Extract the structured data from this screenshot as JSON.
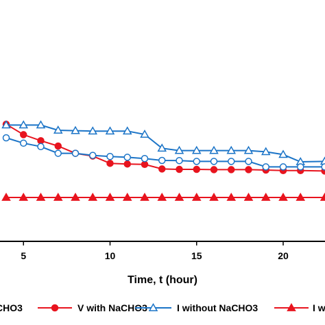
{
  "chart_data": {
    "type": "line",
    "title": "",
    "xlabel": "Time, t (hour)",
    "ylabel": "",
    "xlim": [
      0,
      22.5
    ],
    "ylim": [
      0,
      100
    ],
    "xticks": [
      5,
      10,
      15,
      20
    ],
    "grid": false,
    "legend_position": "bottom",
    "series": [
      {
        "name": "V with NaCHO3",
        "color": "#e8141e",
        "marker": "filled-circle",
        "x": [
          4,
          5,
          6,
          7,
          8,
          9,
          10,
          11,
          12,
          13,
          14,
          15,
          16,
          17,
          18,
          19,
          20,
          21,
          22.4
        ],
        "y": [
          53.4,
          45.8,
          41.4,
          37.5,
          32.2,
          30.2,
          24.9,
          24.4,
          24.1,
          20.8,
          20.5,
          20.5,
          20.3,
          20.3,
          20.3,
          20.0,
          19.6,
          19.6,
          19.3
        ]
      },
      {
        "name": "I without NaCHO3",
        "color": "#1b74c7",
        "marker": "open-triangle",
        "x": [
          4,
          5,
          6,
          7,
          8,
          9,
          10,
          11,
          12,
          13,
          14,
          15,
          16,
          17,
          18,
          19,
          20,
          21,
          22.4
        ],
        "y": [
          52.8,
          52.8,
          52.8,
          49.0,
          48.7,
          48.4,
          48.4,
          48.4,
          46.0,
          35.9,
          34.2,
          34.2,
          34.2,
          34.2,
          34.2,
          33.3,
          31.3,
          26.0,
          26.3
        ]
      },
      {
        "name": "",
        "color": "#1b74c7",
        "marker": "open-circle",
        "x": [
          4,
          5,
          6,
          7,
          8,
          9,
          10,
          11,
          12,
          13,
          14,
          15,
          16,
          17,
          18,
          19,
          20,
          21,
          22.4
        ],
        "y": [
          43.5,
          39.6,
          37.1,
          32.2,
          32.2,
          30.7,
          29.9,
          29.3,
          28.4,
          27.0,
          26.9,
          26.3,
          26.3,
          26.3,
          26.3,
          22.3,
          22.3,
          22.3,
          22.3
        ]
      },
      {
        "name": "I with",
        "color": "#e8141e",
        "marker": "filled-triangle",
        "x": [
          4,
          5,
          6,
          7,
          8,
          9,
          10,
          11,
          12,
          13,
          14,
          15,
          16,
          17,
          18,
          19,
          20,
          21,
          22.4
        ],
        "y": [
          0.0,
          0.0,
          0.0,
          0.0,
          0.0,
          0.0,
          0.0,
          0.0,
          0.0,
          0.0,
          0.0,
          0.0,
          0.0,
          0.0,
          0.0,
          0.0,
          0.0,
          0.0,
          0.0
        ]
      }
    ],
    "legend_partial_label": "CHO3"
  }
}
